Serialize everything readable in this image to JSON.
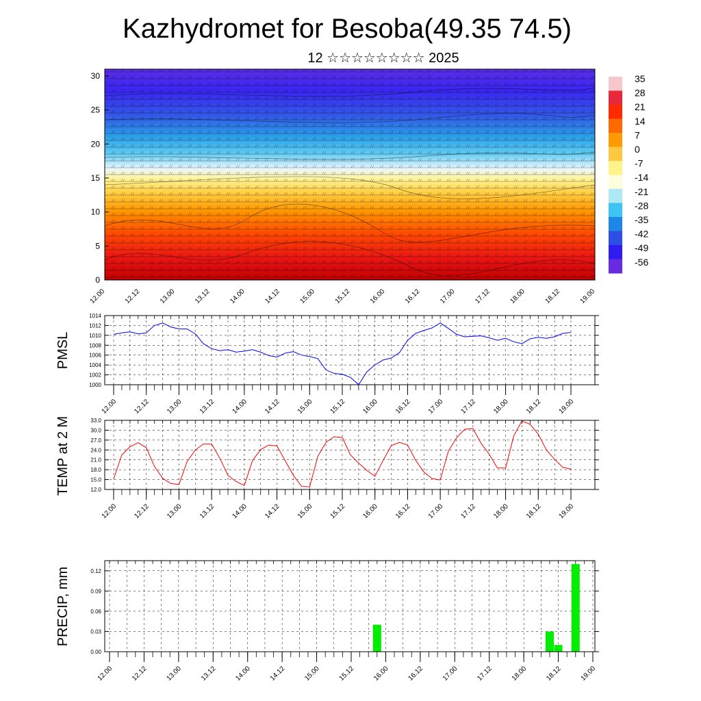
{
  "title": "Kazhydromet for Besoba(49.35 74.5)",
  "subtitle": "12 ☆☆☆☆☆☆☆☆ 2025",
  "x_ticks": [
    "12.00",
    "12.12",
    "13.00",
    "13.12",
    "14.00",
    "14.12",
    "15.00",
    "15.12",
    "16.00",
    "16.12",
    "17.00",
    "17.12",
    "18.00",
    "18.12",
    "19.00"
  ],
  "colors": {
    "pmsl_line": "#0000ff",
    "temp_line": "#ff0000",
    "precip_bar": "#00ee00",
    "grid": "#000000"
  },
  "chart_data": [
    {
      "type": "heatmap",
      "name": "cross-section",
      "ylim": [
        0,
        30
      ],
      "y_ticks": [
        0,
        5,
        10,
        15,
        20,
        25,
        30
      ],
      "colorbar_labels": [
        "35",
        "28",
        "21",
        "14",
        "7",
        "0",
        "-7",
        "-14",
        "-21",
        "-28",
        "-35",
        "-42",
        "-49",
        "-56"
      ],
      "colorbar_colors": [
        "#f6c8cc",
        "#e9293b",
        "#ff2a00",
        "#ff6a00",
        "#ff9a00",
        "#ffc840",
        "#fff38a",
        "#fdfde0",
        "#aee8f4",
        "#3cc4f2",
        "#1d86e6",
        "#2e4fe6",
        "#2f1df0",
        "#6a2ae0"
      ],
      "note_values": "temperature decreasing with height; warm near ground, cold aloft"
    },
    {
      "type": "line",
      "ylabel": "PMSL",
      "ylim": [
        1000,
        1014
      ],
      "y_ticks": [
        1000,
        1002,
        1004,
        1006,
        1008,
        1010,
        1012,
        1014
      ],
      "x_days": [
        0,
        0.125,
        0.25,
        0.375,
        0.5,
        0.625,
        0.75,
        0.875,
        1,
        1.125,
        1.25,
        1.375,
        1.5,
        1.625,
        1.75,
        1.875,
        2,
        2.125,
        2.25,
        2.375,
        2.5,
        2.625,
        2.75,
        2.875,
        3,
        3.125,
        3.25,
        3.375,
        3.5,
        3.625,
        3.75,
        3.875,
        4,
        4.125,
        4.25,
        4.375,
        4.5,
        4.625,
        4.75,
        4.875,
        5,
        5.125,
        5.25,
        5.375,
        5.5,
        5.625,
        5.75,
        5.875,
        6,
        6.125,
        6.25,
        6.375,
        6.5,
        6.625,
        6.75,
        6.875,
        7
      ],
      "values": [
        1010.2,
        1010.5,
        1010.7,
        1010.3,
        1010.5,
        1012.0,
        1012.5,
        1011.7,
        1011.3,
        1011.3,
        1010.3,
        1008.3,
        1007.3,
        1006.9,
        1007.1,
        1006.6,
        1006.8,
        1007.1,
        1006.6,
        1005.9,
        1005.6,
        1006.4,
        1006.7,
        1006.0,
        1005.7,
        1005.3,
        1003.0,
        1002.3,
        1002.1,
        1001.5,
        1000.0,
        1002.6,
        1004.0,
        1005.0,
        1005.4,
        1006.5,
        1009.0,
        1010.4,
        1011.0,
        1011.5,
        1012.5,
        1011.4,
        1010.2,
        1009.7,
        1009.8,
        1009.9,
        1009.5,
        1009.0,
        1009.4,
        1008.7,
        1008.3,
        1009.3,
        1009.6,
        1009.4,
        1009.7,
        1010.4,
        1010.6
      ]
    },
    {
      "type": "line",
      "ylabel": "TEMP at 2 M",
      "ylim": [
        12,
        33
      ],
      "y_tick_labels": [
        "12.0",
        "15.0",
        "18.0",
        "21.0",
        "24.0",
        "27.0",
        "30.0",
        "33.0"
      ],
      "x_days": [
        0,
        0.125,
        0.25,
        0.375,
        0.5,
        0.625,
        0.75,
        0.875,
        1,
        1.125,
        1.25,
        1.375,
        1.5,
        1.625,
        1.75,
        1.875,
        2,
        2.125,
        2.25,
        2.375,
        2.5,
        2.625,
        2.75,
        2.875,
        3,
        3.125,
        3.25,
        3.375,
        3.5,
        3.625,
        3.75,
        3.875,
        4,
        4.125,
        4.25,
        4.375,
        4.5,
        4.625,
        4.75,
        4.875,
        5,
        5.125,
        5.25,
        5.375,
        5.5,
        5.625,
        5.75,
        5.875,
        6,
        6.125,
        6.25,
        6.375,
        6.5,
        6.625,
        6.75,
        6.875,
        7
      ],
      "values": [
        15.2,
        22.5,
        25.0,
        26.2,
        24.7,
        19.0,
        15.4,
        13.8,
        13.5,
        20.5,
        24.0,
        25.8,
        25.8,
        21.5,
        16.3,
        14.4,
        13.2,
        20.8,
        24.1,
        25.5,
        25.2,
        20.8,
        16.3,
        13.0,
        12.8,
        22.0,
        26.3,
        28.0,
        27.8,
        22.5,
        20.0,
        17.8,
        16.0,
        20.8,
        25.3,
        26.3,
        25.5,
        20.8,
        17.3,
        15.3,
        14.9,
        23.7,
        27.7,
        30.3,
        30.5,
        26.0,
        22.7,
        18.5,
        18.5,
        28.3,
        32.8,
        31.8,
        28.8,
        24.0,
        21.2,
        18.7,
        18.2
      ]
    },
    {
      "type": "bar",
      "ylabel": "PRECIP, mm",
      "ylim": [
        0,
        0.135
      ],
      "y_tick_labels": [
        "0.00",
        "0.03",
        "0.06",
        "0.09",
        "0.12"
      ],
      "x_days": [
        3.875,
        6.375,
        6.5,
        6.75
      ],
      "values": [
        0.04,
        0.03,
        0.01,
        0.13
      ]
    }
  ]
}
